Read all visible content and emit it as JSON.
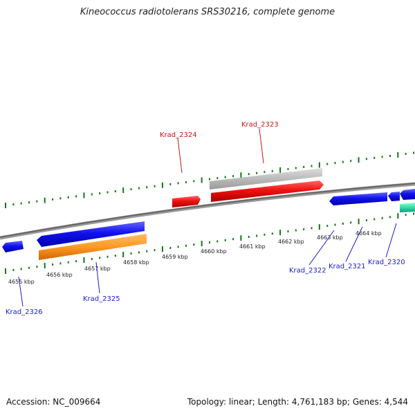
{
  "title": "Kineococcus radiotolerans SRS30216, complete genome",
  "footer": {
    "accession": "Accession: NC_009664",
    "stats": "Topology: linear; Length: 4,761,183 bp; Genes: 4,544"
  },
  "axis": {
    "ticks": [
      "4655 kbp",
      "4656 kbp",
      "4657 kbp",
      "4658 kbp",
      "4659 kbp",
      "4660 kbp",
      "4661 kbp",
      "4662 kbp",
      "4663 kbp",
      "4664 kbp"
    ]
  },
  "genes": [
    {
      "label": "Krad_2326",
      "color": "#1a1acc"
    },
    {
      "label": "Krad_2325",
      "color": "#1a1acc"
    },
    {
      "label": "Krad_2324",
      "color": "#cc1111"
    },
    {
      "label": "Krad_2323",
      "color": "#cc1111"
    },
    {
      "label": "Krad_2322",
      "color": "#1a1acc"
    },
    {
      "label": "Krad_2321",
      "color": "#1a1acc"
    },
    {
      "label": "Krad_2320",
      "color": "#1a1acc"
    }
  ],
  "colors": {
    "forward_strand": "#ee1111",
    "reverse_strand": "#1111ee",
    "orange_feature": "#ff9922",
    "grey_feature": "#bbbbbb",
    "teal_feature": "#33ddaa",
    "tick_green": "#117711",
    "backbone": "#777777"
  }
}
